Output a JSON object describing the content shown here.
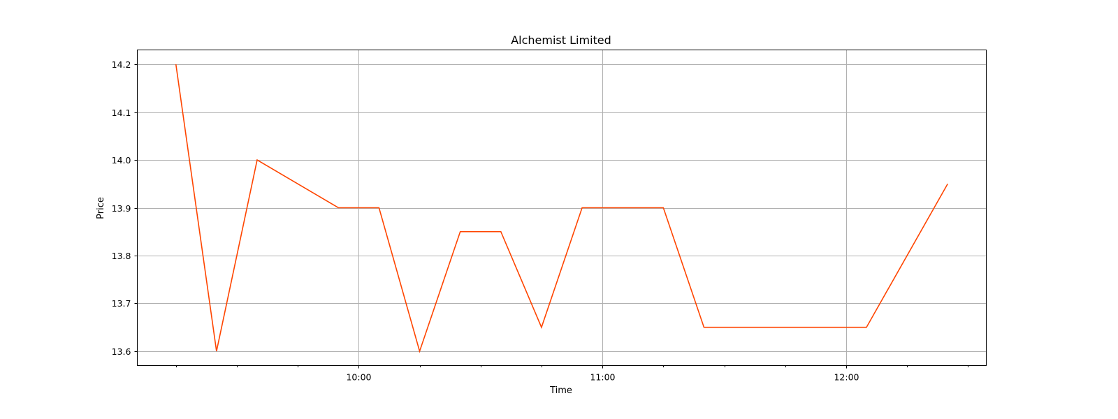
{
  "chart_data": {
    "type": "line",
    "title": "Alchemist Limited",
    "xlabel": "Time",
    "ylabel": "Price",
    "x_tick_labels": [
      "10:00",
      "11:00",
      "12:00"
    ],
    "y_ticks": [
      13.6,
      13.7,
      13.8,
      13.9,
      14.0,
      14.1,
      14.2
    ],
    "y_tick_labels": [
      "13.6",
      "13.7",
      "13.8",
      "13.9",
      "14.0",
      "14.1",
      "14.2"
    ],
    "grid": true,
    "series": [
      {
        "color": "#ff4500",
        "x": [
          "09:15",
          "09:25",
          "09:35",
          "09:55",
          "10:05",
          "10:15",
          "10:25",
          "10:35",
          "10:45",
          "10:55",
          "11:15",
          "11:25",
          "12:05",
          "12:25"
        ],
        "y": [
          14.2,
          13.6,
          14.0,
          13.9,
          13.9,
          13.6,
          13.85,
          13.85,
          13.65,
          13.9,
          13.9,
          13.65,
          13.65,
          13.95
        ]
      }
    ]
  }
}
